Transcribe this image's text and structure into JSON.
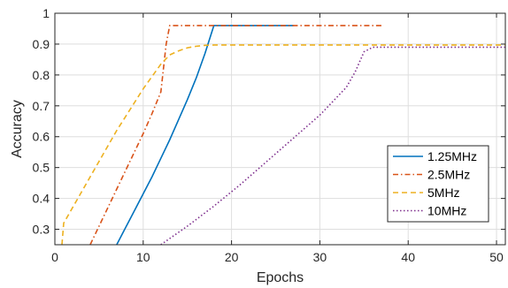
{
  "chart_data": {
    "type": "line",
    "xlabel": "Epochs",
    "ylabel": "Accuracy",
    "xlim": [
      0,
      51
    ],
    "ylim": [
      0.25,
      1.0
    ],
    "xticks": [
      0,
      10,
      20,
      30,
      40,
      50
    ],
    "yticks": [
      0.3,
      0.4,
      0.5,
      0.6,
      0.7,
      0.8,
      0.9,
      1
    ],
    "ytick_labels": [
      "0.3",
      "0.4",
      "0.5",
      "0.6",
      "0.7",
      "0.8",
      "0.9",
      "1"
    ],
    "grid": true,
    "legend_position": "right",
    "series": [
      {
        "name": "1.25MHz",
        "color": "#0072BD",
        "dash": "solid",
        "x": [
          7,
          8,
          9,
          10,
          11,
          12,
          13,
          14,
          15,
          16,
          17,
          18,
          19,
          20,
          21,
          22,
          23,
          24,
          25,
          26,
          27
        ],
        "y": [
          0.25,
          0.305,
          0.36,
          0.415,
          0.47,
          0.53,
          0.59,
          0.655,
          0.72,
          0.79,
          0.87,
          0.96,
          0.96,
          0.96,
          0.96,
          0.96,
          0.96,
          0.96,
          0.96,
          0.96,
          0.96
        ]
      },
      {
        "name": "2.5MHz",
        "color": "#D95319",
        "dash": "dashdot",
        "x": [
          4,
          5,
          6,
          7,
          8,
          9,
          10,
          11,
          12,
          12.6,
          13,
          15,
          20,
          25,
          30,
          35,
          37
        ],
        "y": [
          0.25,
          0.31,
          0.37,
          0.43,
          0.49,
          0.55,
          0.61,
          0.675,
          0.745,
          0.9,
          0.96,
          0.96,
          0.96,
          0.96,
          0.96,
          0.96,
          0.96
        ]
      },
      {
        "name": "5MHz",
        "color": "#EDB120",
        "dash": "dashed",
        "x": [
          0.8,
          1,
          2,
          3,
          4,
          5,
          6,
          7,
          8,
          9,
          10,
          11,
          12,
          13,
          14,
          15,
          16,
          17,
          18,
          20,
          25,
          30,
          35,
          40,
          45,
          51
        ],
        "y": [
          0.25,
          0.32,
          0.37,
          0.42,
          0.47,
          0.52,
          0.57,
          0.62,
          0.665,
          0.71,
          0.755,
          0.795,
          0.835,
          0.865,
          0.878,
          0.888,
          0.893,
          0.896,
          0.897,
          0.897,
          0.897,
          0.897,
          0.897,
          0.897,
          0.897,
          0.897
        ]
      },
      {
        "name": "10MHz",
        "color": "#7E2F8E",
        "dash": "dotted",
        "x": [
          12,
          15,
          18,
          21,
          24,
          27,
          30,
          33,
          34,
          35,
          36,
          40,
          45,
          51
        ],
        "y": [
          0.25,
          0.31,
          0.375,
          0.445,
          0.52,
          0.595,
          0.67,
          0.76,
          0.81,
          0.875,
          0.89,
          0.89,
          0.89,
          0.89
        ]
      }
    ]
  }
}
